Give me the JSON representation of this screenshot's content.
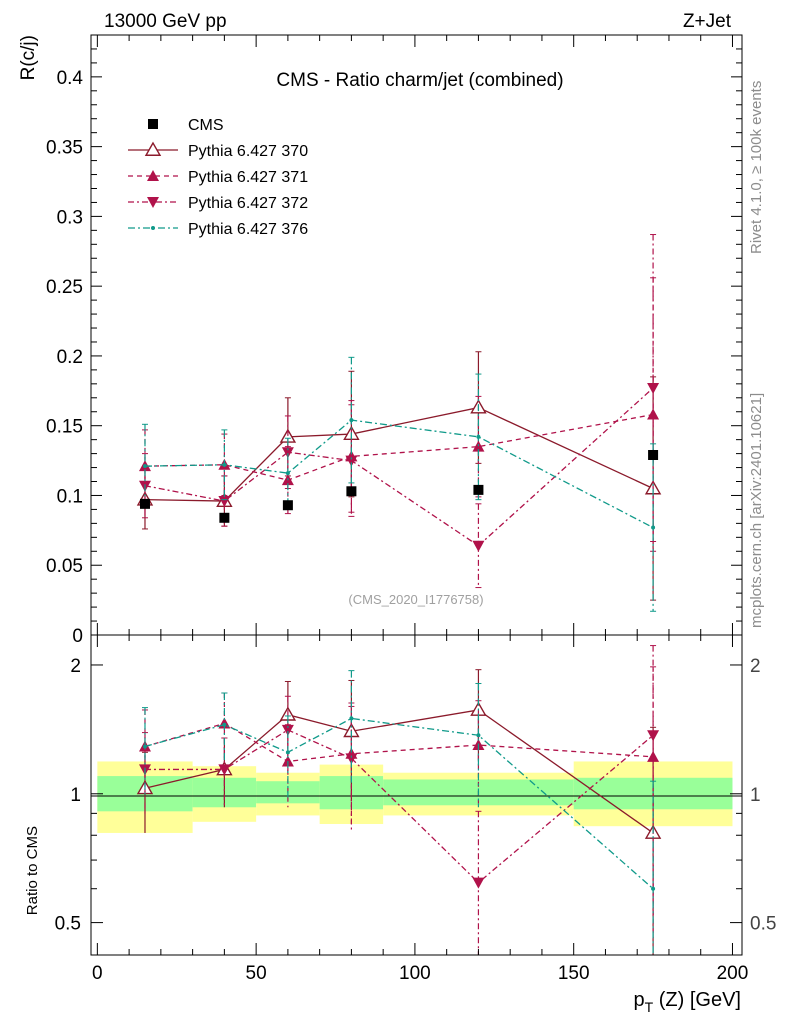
{
  "header": {
    "left": "13000 GeV pp",
    "right": "Z+Jet",
    "side_top": "Rivet 4.1.0, ≥ 100k events",
    "side_bottom": "mcplots.cern.ch [arXiv:2401.10621]"
  },
  "chart_data": {
    "type": "scatter",
    "title": "CMS - Ratio charm/jet (combined)",
    "analysis_label": "(CMS_2020_I1776758)",
    "ylabel": "R(c/j)",
    "ratio_ylabel": "Ratio to CMS",
    "xlabel": "p_T (Z) [GeV]",
    "xlabel_main": "p",
    "xlabel_sub": "T",
    "xlabel_rest": " (Z) [GeV]",
    "xlim": [
      -2,
      203
    ],
    "ylim": [
      0,
      0.43
    ],
    "ratio_ylim": [
      0.42,
      2.35
    ],
    "x_ticks": [
      0,
      50,
      100,
      150,
      200
    ],
    "x_tick_labels": [
      "0",
      "50",
      "100",
      "150",
      "200"
    ],
    "y_ticks": [
      0,
      0.05,
      0.1,
      0.15,
      0.2,
      0.25,
      0.3,
      0.35,
      0.4
    ],
    "y_tick_labels": [
      "0",
      "0.05",
      "0.1",
      "0.15",
      "0.2",
      "0.25",
      "0.3",
      "0.35",
      "0.4"
    ],
    "ratio_ticks": [
      0.5,
      1,
      2
    ],
    "ratio_tick_labels": [
      "0.5",
      "1",
      "2"
    ],
    "bins": [
      [
        0,
        30
      ],
      [
        30,
        50
      ],
      [
        50,
        70
      ],
      [
        70,
        90
      ],
      [
        90,
        150
      ],
      [
        150,
        200
      ]
    ],
    "data": {
      "name": "CMS",
      "x": [
        15,
        40,
        60,
        80,
        120,
        175
      ],
      "y": [
        0.094,
        0.084,
        0.093,
        0.103,
        0.104,
        0.129
      ],
      "ratio_band_inner": [
        [
          0.91,
          1.1
        ],
        [
          0.93,
          1.09
        ],
        [
          0.95,
          1.07
        ],
        [
          0.92,
          1.1
        ],
        [
          0.94,
          1.08
        ],
        [
          0.92,
          1.09
        ]
      ],
      "ratio_band_outer": [
        [
          0.81,
          1.19
        ],
        [
          0.86,
          1.16
        ],
        [
          0.89,
          1.12
        ],
        [
          0.85,
          1.17
        ],
        [
          0.89,
          1.12
        ],
        [
          0.84,
          1.19
        ]
      ]
    },
    "series": [
      {
        "name": "Pythia 6.427 370",
        "color": "#8b1a2b",
        "dash": "",
        "marker": "triangle-open",
        "x": [
          15,
          40,
          60,
          80,
          120,
          175
        ],
        "y": [
          0.097,
          0.096,
          0.142,
          0.144,
          0.163,
          0.105
        ],
        "err": [
          0.021,
          0.018,
          0.028,
          0.045,
          0.04,
          0.08
        ],
        "ratio": [
          1.03,
          1.14,
          1.53,
          1.4,
          1.57,
          0.81
        ],
        "ratio_err": [
          0.22,
          0.21,
          0.3,
          0.44,
          0.38,
          0.62
        ]
      },
      {
        "name": "Pythia 6.427 371",
        "color": "#b0124a",
        "dash": "5,4",
        "marker": "triangle-up",
        "x": [
          15,
          40,
          60,
          80,
          120,
          175
        ],
        "y": [
          0.121,
          0.122,
          0.111,
          0.128,
          0.135,
          0.158
        ],
        "err": [
          0.026,
          0.022,
          0.024,
          0.04,
          0.036,
          0.098
        ],
        "ratio": [
          1.29,
          1.46,
          1.19,
          1.24,
          1.3,
          1.22
        ],
        "ratio_err": [
          0.28,
          0.26,
          0.26,
          0.39,
          0.35,
          0.76
        ]
      },
      {
        "name": "Pythia 6.427 372",
        "color": "#b0124a",
        "dash": "6,3,2,3",
        "marker": "triangle-down",
        "x": [
          15,
          40,
          60,
          80,
          120,
          175
        ],
        "y": [
          0.107,
          0.096,
          0.131,
          0.125,
          0.064,
          0.177
        ],
        "err": [
          0.023,
          0.018,
          0.026,
          0.04,
          0.03,
          0.11
        ],
        "ratio": [
          1.14,
          1.14,
          1.41,
          1.21,
          0.62,
          1.37
        ],
        "ratio_err": [
          0.25,
          0.21,
          0.28,
          0.39,
          0.29,
          0.85
        ]
      },
      {
        "name": "Pythia 6.427 376",
        "color": "#109a8a",
        "dash": "7,3,2,3",
        "marker": "dot",
        "x": [
          15,
          40,
          60,
          80,
          120,
          175
        ],
        "y": [
          0.121,
          0.122,
          0.116,
          0.154,
          0.142,
          0.077
        ],
        "err": [
          0.03,
          0.025,
          0.025,
          0.045,
          0.045,
          0.06
        ],
        "ratio": [
          1.29,
          1.45,
          1.25,
          1.5,
          1.37,
          0.6
        ],
        "ratio_err": [
          0.3,
          0.27,
          0.27,
          0.44,
          0.44,
          0.47
        ]
      }
    ]
  }
}
